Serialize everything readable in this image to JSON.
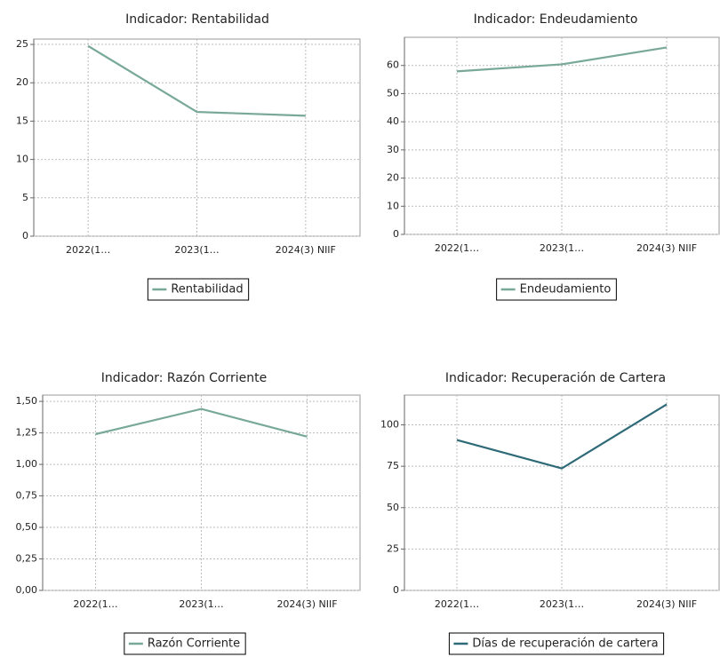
{
  "chart_data": [
    {
      "type": "line",
      "title": "Indicador: Rentabilidad",
      "categories": [
        "2022(1…",
        "2023(1…",
        "2024(3) NIIF"
      ],
      "series": [
        {
          "name": "Rentabilidad",
          "color": "#78a898",
          "values": [
            24.8,
            16.2,
            15.7
          ]
        }
      ],
      "ylim": [
        0,
        25.7
      ],
      "yticks": [
        0,
        5,
        10,
        15,
        20,
        25
      ],
      "grid": true,
      "legend": "bottom"
    },
    {
      "type": "line",
      "title": "Indicador: Endeudamiento",
      "categories": [
        "2022(1…",
        "2023(1…",
        "2024(3) NIIF"
      ],
      "series": [
        {
          "name": "Endeudamiento",
          "color": "#78a898",
          "values": [
            57.9,
            60.4,
            66.4
          ]
        }
      ],
      "ylim": [
        0,
        70
      ],
      "yticks": [
        0,
        10,
        20,
        30,
        40,
        50,
        60
      ],
      "grid": true,
      "legend": "bottom"
    },
    {
      "type": "line",
      "title": "Indicador: Razón Corriente",
      "categories": [
        "2022(1…",
        "2023(1…",
        "2024(3) NIIF"
      ],
      "series": [
        {
          "name": "Razón Corriente",
          "color": "#78a898",
          "values": [
            1.24,
            1.44,
            1.22
          ]
        }
      ],
      "ylim": [
        0,
        1.55
      ],
      "yticks": [
        {
          "value": 0,
          "label": "0,00"
        },
        {
          "value": 0.25,
          "label": "0,25"
        },
        {
          "value": 0.5,
          "label": "0,50"
        },
        {
          "value": 0.75,
          "label": "0,75"
        },
        {
          "value": 1,
          "label": "1,00"
        },
        {
          "value": 1.25,
          "label": "1,25"
        },
        {
          "value": 1.5,
          "label": "1,50"
        }
      ],
      "grid": true,
      "legend": "bottom"
    },
    {
      "type": "line",
      "title": "Indicador: Recuperación de Cartera",
      "categories": [
        "2022(1…",
        "2023(1…",
        "2024(3) NIIF"
      ],
      "series": [
        {
          "name": "Días de recuperación de cartera",
          "color": "#2f6a78",
          "values": [
            90.9,
            73.7,
            112.4
          ]
        }
      ],
      "ylim": [
        0,
        118
      ],
      "yticks": [
        0,
        25,
        50,
        75,
        100
      ],
      "grid": true,
      "legend": "bottom"
    }
  ]
}
